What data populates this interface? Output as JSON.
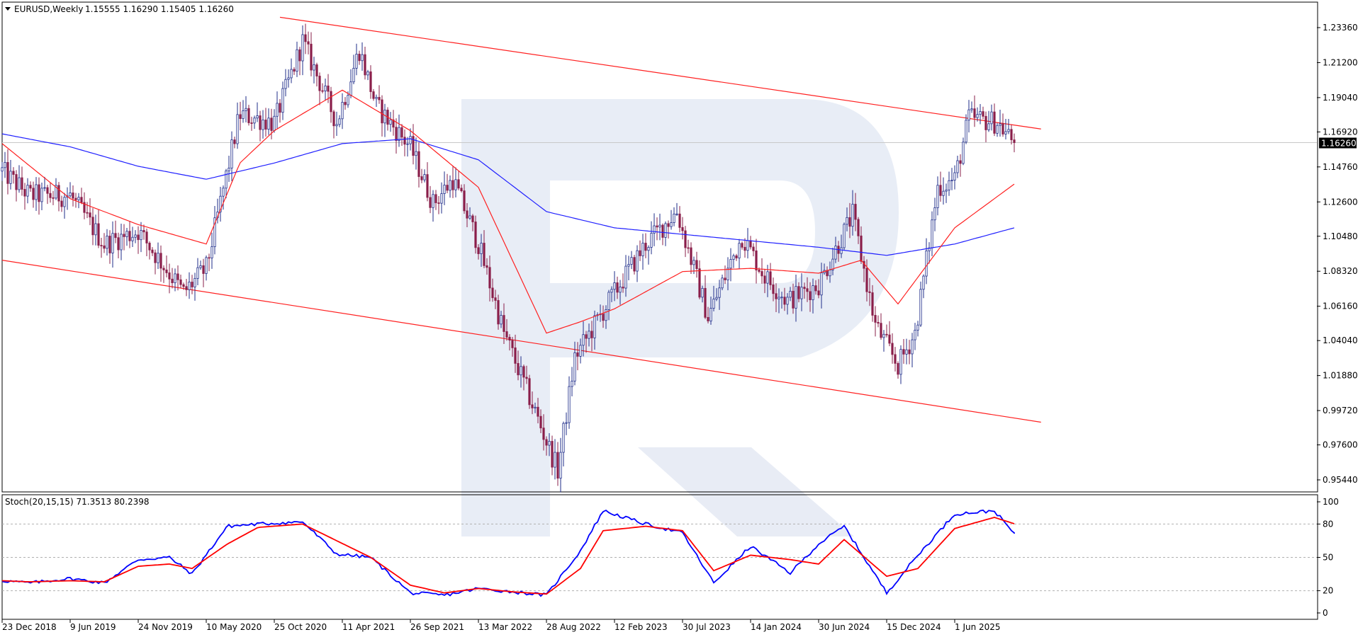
{
  "header": {
    "symbol_timeframe": "EURUSD,Weekly",
    "ohlc": "1.15555 1.16290 1.15405 1.16260"
  },
  "current_price_label": "1.16260",
  "stoch_header": "Stoch(20,15,15) 71.3513 80.2398",
  "colors": {
    "bull_candle": "#1f2d8a",
    "bear_candle": "#8a1f4a",
    "ma_fast": "#ff2020",
    "ma_slow": "#2020ff",
    "stoch_main": "#0000ff",
    "stoch_signal": "#ff0000",
    "channel": "#ff2020",
    "watermark": "#e6ebf5"
  },
  "chart_data": [
    {
      "type": "candlestick",
      "name": "EURUSD,Weekly",
      "ylim": [
        0.94,
        1.255
      ],
      "y_ticks": [
        "1.23360",
        "1.21200",
        "1.19040",
        "1.16920",
        "1.14760",
        "1.12600",
        "1.10480",
        "1.08320",
        "1.06160",
        "1.04040",
        "1.01880",
        "0.99720",
        "0.97600",
        "0.95440"
      ],
      "x_tick_labels": [
        "23 Dec 2018",
        "9 Jun 2019",
        "24 Nov 2019",
        "10 May 2020",
        "25 Oct 2020",
        "11 Apr 2021",
        "26 Sep 2021",
        "13 Mar 2022",
        "28 Aug 2022",
        "12 Feb 2023",
        "30 Jul 2023",
        "14 Jan 2024",
        "30 Jun 2024",
        "15 Dec 2024",
        "1 Jun 2025"
      ],
      "approx_close_path": [
        [
          "2018-12-23",
          1.145
        ],
        [
          "2019-03-01",
          1.13
        ],
        [
          "2019-06-09",
          1.13
        ],
        [
          "2019-09-01",
          1.1
        ],
        [
          "2019-11-24",
          1.108
        ],
        [
          "2020-03-15",
          1.07
        ],
        [
          "2020-05-10",
          1.085
        ],
        [
          "2020-07-31",
          1.18
        ],
        [
          "2020-10-25",
          1.175
        ],
        [
          "2021-01-03",
          1.225
        ],
        [
          "2021-03-28",
          1.175
        ],
        [
          "2021-05-23",
          1.22
        ],
        [
          "2021-07-04",
          1.185
        ],
        [
          "2021-09-26",
          1.16
        ],
        [
          "2021-11-21",
          1.125
        ],
        [
          "2022-01-09",
          1.14
        ],
        [
          "2022-03-13",
          1.1
        ],
        [
          "2022-05-15",
          1.045
        ],
        [
          "2022-07-10",
          1.01
        ],
        [
          "2022-09-25",
          0.96
        ],
        [
          "2022-11-06",
          1.03
        ],
        [
          "2023-02-12",
          1.07
        ],
        [
          "2023-04-30",
          1.1
        ],
        [
          "2023-07-16",
          1.12
        ],
        [
          "2023-10-01",
          1.055
        ],
        [
          "2023-12-24",
          1.105
        ],
        [
          "2024-02-18",
          1.08
        ],
        [
          "2024-04-14",
          1.065
        ],
        [
          "2024-06-30",
          1.075
        ],
        [
          "2024-09-22",
          1.118
        ],
        [
          "2024-11-17",
          1.05
        ],
        [
          "2025-01-12",
          1.025
        ],
        [
          "2025-02-23",
          1.045
        ],
        [
          "2025-04-20",
          1.135
        ],
        [
          "2025-06-01",
          1.14
        ],
        [
          "2025-07-06",
          1.178
        ],
        [
          "2025-09-14",
          1.175
        ],
        [
          "2025-10-26",
          1.1626
        ]
      ],
      "ma_fast_path": [
        [
          "2018-12-23",
          1.162
        ],
        [
          "2019-06-09",
          1.128
        ],
        [
          "2019-11-24",
          1.112
        ],
        [
          "2020-05-10",
          1.1
        ],
        [
          "2020-08-01",
          1.15
        ],
        [
          "2020-10-25",
          1.17
        ],
        [
          "2021-04-11",
          1.195
        ],
        [
          "2021-09-26",
          1.17
        ],
        [
          "2022-03-13",
          1.135
        ],
        [
          "2022-08-28",
          1.045
        ],
        [
          "2022-11-20",
          1.052
        ],
        [
          "2023-02-12",
          1.06
        ],
        [
          "2023-07-30",
          1.083
        ],
        [
          "2024-01-14",
          1.085
        ],
        [
          "2024-06-30",
          1.082
        ],
        [
          "2024-10-13",
          1.09
        ],
        [
          "2025-01-12",
          1.063
        ],
        [
          "2025-06-01",
          1.11
        ],
        [
          "2025-10-26",
          1.137
        ]
      ],
      "ma_slow_path": [
        [
          "2018-12-23",
          1.168
        ],
        [
          "2019-06-09",
          1.16
        ],
        [
          "2019-11-24",
          1.148
        ],
        [
          "2020-05-10",
          1.14
        ],
        [
          "2020-10-25",
          1.15
        ],
        [
          "2021-04-11",
          1.162
        ],
        [
          "2021-09-26",
          1.165
        ],
        [
          "2022-03-13",
          1.152
        ],
        [
          "2022-08-28",
          1.12
        ],
        [
          "2023-02-12",
          1.11
        ],
        [
          "2023-07-30",
          1.106
        ],
        [
          "2024-01-14",
          1.102
        ],
        [
          "2024-06-30",
          1.098
        ],
        [
          "2024-12-15",
          1.093
        ],
        [
          "2025-06-01",
          1.1
        ],
        [
          "2025-10-26",
          1.11
        ]
      ],
      "channel_upper": [
        [
          "2020-11-08",
          1.24
        ],
        [
          "2025-12-31",
          1.171
        ]
      ],
      "channel_lower": [
        [
          "2018-12-23",
          1.09
        ],
        [
          "2025-12-31",
          0.99
        ]
      ],
      "current_price": 1.1626
    },
    {
      "type": "line",
      "name": "Stoch(20,15,15)",
      "ylim": [
        0,
        100
      ],
      "y_ticks": [
        "100",
        "80",
        "50",
        "20",
        "0"
      ],
      "levels": [
        80,
        50,
        20
      ],
      "series": [
        {
          "name": "main",
          "value": 71.3513,
          "points": [
            [
              "2018-12-23",
              29
            ],
            [
              "2019-03-01",
              27
            ],
            [
              "2019-06-09",
              31
            ],
            [
              "2019-09-01",
              27
            ],
            [
              "2019-11-24",
              48
            ],
            [
              "2020-02-09",
              50
            ],
            [
              "2020-04-05",
              35
            ],
            [
              "2020-07-01",
              78
            ],
            [
              "2020-09-15",
              80
            ],
            [
              "2021-01-03",
              82
            ],
            [
              "2021-03-28",
              53
            ],
            [
              "2021-06-20",
              50
            ],
            [
              "2021-09-26",
              18
            ],
            [
              "2021-12-19",
              16
            ],
            [
              "2022-03-13",
              22
            ],
            [
              "2022-06-05",
              19
            ],
            [
              "2022-08-28",
              16
            ],
            [
              "2022-11-20",
              56
            ],
            [
              "2023-01-15",
              92
            ],
            [
              "2023-04-30",
              80
            ],
            [
              "2023-07-30",
              72
            ],
            [
              "2023-10-15",
              27
            ],
            [
              "2024-01-14",
              60
            ],
            [
              "2024-04-21",
              36
            ],
            [
              "2024-06-30",
              62
            ],
            [
              "2024-09-01",
              78
            ],
            [
              "2024-12-15",
              18
            ],
            [
              "2025-03-02",
              52
            ],
            [
              "2025-06-01",
              89
            ],
            [
              "2025-09-07",
              92
            ],
            [
              "2025-10-26",
              71.3513
            ]
          ]
        },
        {
          "name": "signal",
          "value": 80.2398,
          "points": [
            [
              "2018-12-23",
              29
            ],
            [
              "2019-03-01",
              28
            ],
            [
              "2019-06-09",
              29
            ],
            [
              "2019-09-01",
              28
            ],
            [
              "2019-11-24",
              42
            ],
            [
              "2020-02-09",
              44
            ],
            [
              "2020-04-05",
              40
            ],
            [
              "2020-07-01",
              62
            ],
            [
              "2020-09-15",
              77
            ],
            [
              "2021-01-03",
              80
            ],
            [
              "2021-03-28",
              65
            ],
            [
              "2021-06-20",
              50
            ],
            [
              "2021-09-26",
              25
            ],
            [
              "2021-12-19",
              18
            ],
            [
              "2022-03-13",
              22
            ],
            [
              "2022-06-05",
              19
            ],
            [
              "2022-08-28",
              17
            ],
            [
              "2022-11-20",
              40
            ],
            [
              "2023-01-15",
              74
            ],
            [
              "2023-04-30",
              78
            ],
            [
              "2023-07-30",
              74
            ],
            [
              "2023-10-15",
              38
            ],
            [
              "2024-01-14",
              52
            ],
            [
              "2024-04-21",
              48
            ],
            [
              "2024-06-30",
              44
            ],
            [
              "2024-09-01",
              66
            ],
            [
              "2024-12-15",
              33
            ],
            [
              "2025-03-02",
              40
            ],
            [
              "2025-06-01",
              76
            ],
            [
              "2025-09-07",
              86
            ],
            [
              "2025-10-26",
              80.2398
            ]
          ]
        }
      ]
    }
  ]
}
